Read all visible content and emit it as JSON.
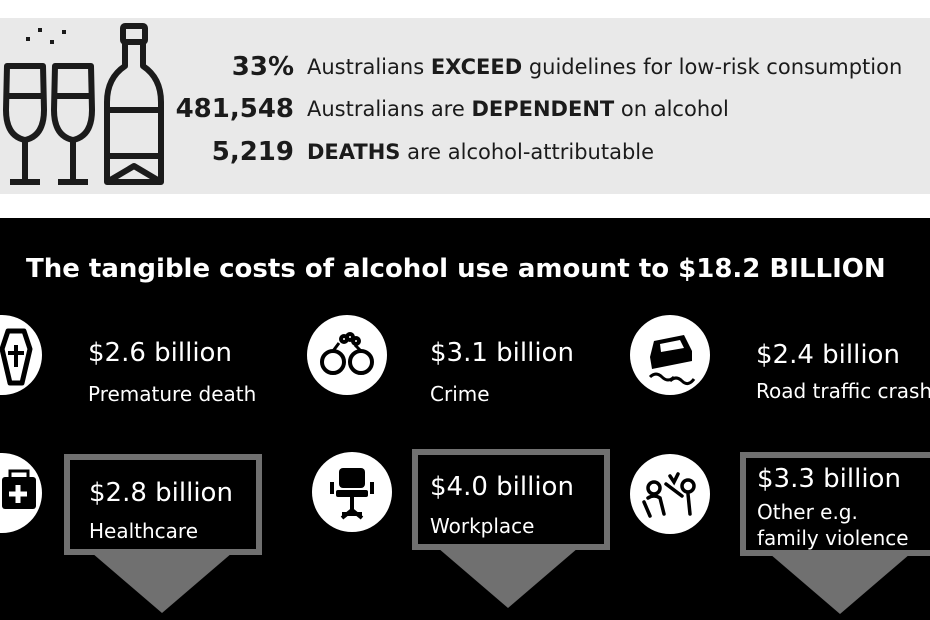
{
  "stats": [
    {
      "number": "33%",
      "pre": "Australians ",
      "emph": "EXCEED",
      "post": " guidelines for low-risk consumption"
    },
    {
      "number": "481,548",
      "pre": "Australians are ",
      "emph": "DEPENDENT",
      "post": " on alcohol"
    },
    {
      "number": "5,219",
      "pre": "",
      "emph": "DEATHS",
      "post": " are alcohol-attributable"
    }
  ],
  "headline": "The tangible costs of alcohol use amount to $18.2 BILLION",
  "costs": {
    "premature": {
      "amount": "$2.6 billion",
      "label": "Premature death"
    },
    "crime": {
      "amount": "$3.1 billion",
      "label": "Crime"
    },
    "road": {
      "amount": "$2.4 billion",
      "label": "Road traffic crashes"
    },
    "healthcare": {
      "amount": "$2.8 billion",
      "label": "Healthcare"
    },
    "workplace": {
      "amount": "$4.0 billion",
      "label": "Workplace"
    },
    "other": {
      "amount": "$3.3 billion",
      "label1": "Other e.g.",
      "label2": "family violence"
    }
  },
  "icons": [
    "champagne-glasses-icon",
    "champagne-bottle-icon",
    "coffin-icon",
    "handcuffs-icon",
    "car-skid-icon",
    "first-aid-kit-icon",
    "office-chair-icon",
    "family-violence-icon"
  ]
}
